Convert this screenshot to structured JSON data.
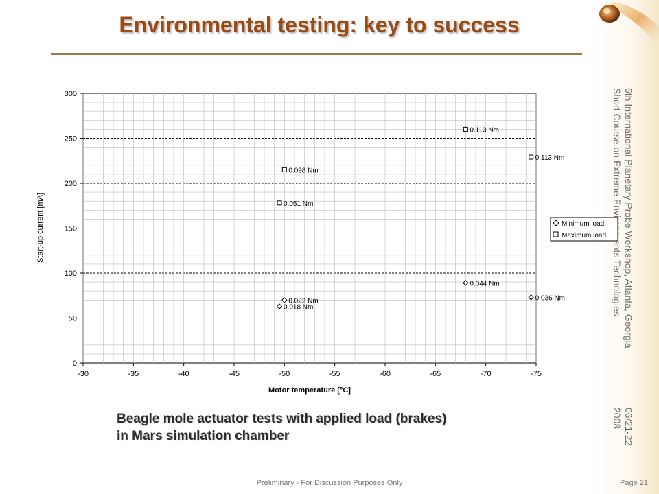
{
  "slide": {
    "title": "Environmental testing: key to success",
    "side_text": {
      "workshop_line1": "6th International Planetary Probe Workshop, Atlanta, Georgia",
      "workshop_line2": "Short Course on Extreme Environments Technologies",
      "date_line1": "06/21-22",
      "date_line2": "2008"
    },
    "caption": {
      "line1": "Beagle mole actuator tests with applied load (brakes)",
      "line2": "in Mars simulation chamber"
    },
    "footer": {
      "center": "Preliminary - For Discussion Purposes Only",
      "page": "Page 21"
    }
  },
  "chart_data": {
    "type": "scatter",
    "title": "",
    "xlabel": "Motor temperature [°C]",
    "ylabel": "Start-up current [mA]",
    "xlim": [
      -30,
      -75
    ],
    "ylim": [
      0,
      300
    ],
    "x_ticks": [
      -30,
      -35,
      -40,
      -45,
      -50,
      -55,
      -60,
      -65,
      -70,
      -75
    ],
    "y_ticks": [
      0,
      50,
      100,
      150,
      200,
      250,
      300
    ],
    "grid": true,
    "legend_position": "right",
    "series": [
      {
        "name": "Minimum load",
        "marker": "diamond",
        "points": [
          {
            "x": -49.5,
            "y": 63,
            "label": "0.018 Nm"
          },
          {
            "x": -50,
            "y": 70,
            "label": "0.022 Nm"
          },
          {
            "x": -68,
            "y": 89,
            "label": "0.044 Nm"
          },
          {
            "x": -74.5,
            "y": 73,
            "label": "0.036 Nm"
          }
        ]
      },
      {
        "name": "Maximum load",
        "marker": "square",
        "points": [
          {
            "x": -49.5,
            "y": 178,
            "label": "0.051 Nm"
          },
          {
            "x": -50,
            "y": 215,
            "label": "0.098 Nm"
          },
          {
            "x": -68,
            "y": 260,
            "label": "0.113 Nm"
          },
          {
            "x": -74.5,
            "y": 229,
            "label": "0.113 Nm"
          }
        ]
      }
    ]
  }
}
